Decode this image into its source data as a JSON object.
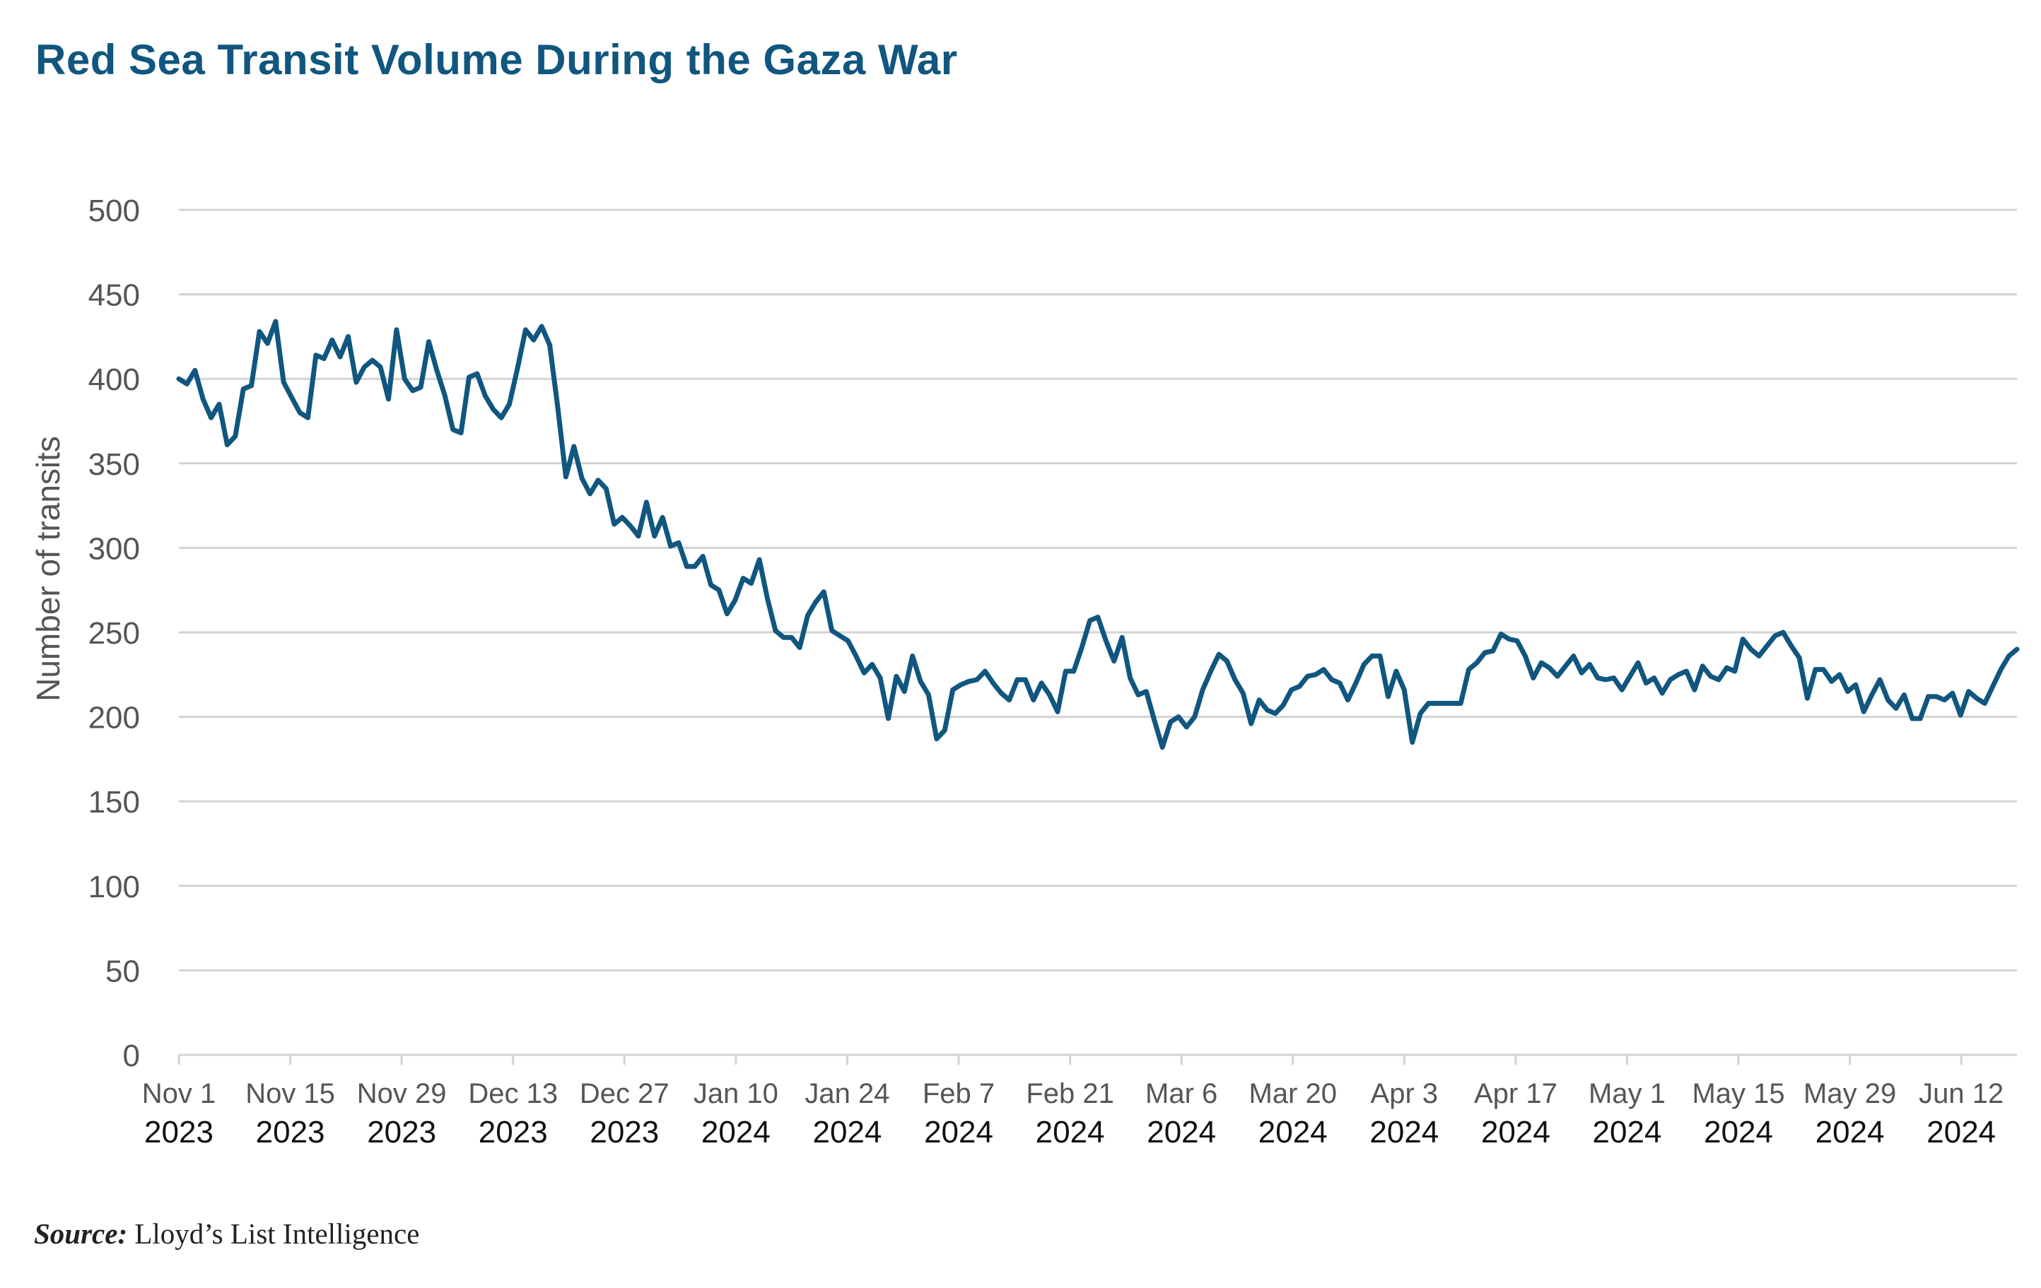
{
  "title": "Red Sea Transit Volume During the Gaza War",
  "source_label": "Source:",
  "source_text": "Lloyd’s List Intelligence",
  "colors": {
    "title": "#10567f",
    "line": "#10567f",
    "grid": "#d3d3d3"
  },
  "chart_data": {
    "type": "line",
    "title": "Red Sea Transit Volume During the Gaza War",
    "xlabel": "",
    "ylabel": "Number of transits",
    "ylim": [
      0,
      500
    ],
    "yticks": [
      0,
      50,
      100,
      150,
      200,
      250,
      300,
      350,
      400,
      450,
      500
    ],
    "grid": true,
    "x_start": "2023-11-01",
    "x_end": "2024-06-19",
    "xticks": [
      {
        "month": "Nov 1",
        "year": "2023"
      },
      {
        "month": "Nov 15",
        "year": "2023"
      },
      {
        "month": "Nov 29",
        "year": "2023"
      },
      {
        "month": "Dec 13",
        "year": "2023"
      },
      {
        "month": "Dec 27",
        "year": "2023"
      },
      {
        "month": "Jan 10",
        "year": "2024"
      },
      {
        "month": "Jan 24",
        "year": "2024"
      },
      {
        "month": "Feb 7",
        "year": "2024"
      },
      {
        "month": "Feb 21",
        "year": "2024"
      },
      {
        "month": "Mar 6",
        "year": "2024"
      },
      {
        "month": "Mar 20",
        "year": "2024"
      },
      {
        "month": "Apr 3",
        "year": "2024"
      },
      {
        "month": "Apr 17",
        "year": "2024"
      },
      {
        "month": "May 1",
        "year": "2024"
      },
      {
        "month": "May 15",
        "year": "2024"
      },
      {
        "month": "May 29",
        "year": "2024"
      },
      {
        "month": "Jun 12",
        "year": "2024"
      }
    ],
    "series": [
      {
        "values": [
          400,
          397,
          405,
          388,
          377,
          385,
          361,
          366,
          394,
          396,
          428,
          421,
          434,
          398,
          389,
          380,
          377,
          414,
          412,
          423,
          413,
          425,
          398,
          407,
          411,
          407,
          388,
          429,
          400,
          393,
          395,
          422,
          405,
          390,
          370,
          368,
          401,
          403,
          390,
          382,
          377,
          385,
          406,
          429,
          423,
          431,
          420,
          383,
          342,
          360,
          341,
          332,
          340,
          335,
          314,
          318,
          313,
          307,
          327,
          307,
          318,
          301,
          303,
          289,
          289,
          295,
          278,
          275,
          261,
          269,
          282,
          279,
          293,
          270,
          251,
          247,
          247,
          241,
          260,
          268,
          274,
          251,
          248,
          245,
          236,
          226,
          231,
          223,
          199,
          224,
          215,
          236,
          221,
          213,
          187,
          192,
          216,
          219,
          221,
          222,
          227,
          220,
          214,
          210,
          222,
          222,
          210,
          220,
          213,
          203,
          227,
          227,
          241,
          257,
          259,
          245,
          233,
          247,
          223,
          213,
          215,
          198,
          182,
          197,
          200,
          194,
          200,
          216,
          227,
          237,
          233,
          222,
          214,
          196,
          210,
          204,
          202,
          207,
          216,
          218,
          224,
          225,
          228,
          222,
          220,
          210,
          220,
          231,
          236,
          236,
          212,
          227,
          216,
          185,
          202,
          208,
          208,
          208,
          208,
          208,
          228,
          232,
          238,
          239,
          249,
          246,
          245,
          236,
          223,
          232,
          229,
          224,
          230,
          236,
          226,
          231,
          223,
          222,
          223,
          216,
          224,
          232,
          220,
          223,
          214,
          222,
          225,
          227,
          216,
          230,
          224,
          222,
          229,
          227,
          246,
          240,
          236,
          242,
          248,
          250,
          242,
          235,
          211,
          228,
          228,
          221,
          225,
          215,
          219,
          203,
          213,
          222,
          210,
          205,
          213,
          199,
          199,
          212,
          212,
          210,
          214,
          201,
          215,
          211,
          208,
          218,
          228,
          236,
          240
        ]
      }
    ]
  }
}
